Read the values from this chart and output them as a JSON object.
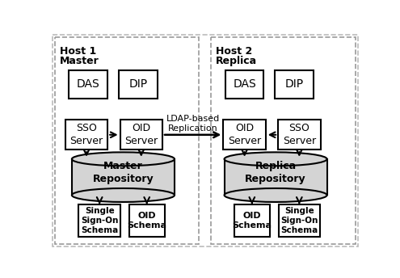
{
  "bg_color": "#ffffff",
  "box_fill": "#ffffff",
  "box_edge": "#000000",
  "cylinder_fill": "#d4d4d4",
  "cylinder_edge": "#000000",
  "arrow_color": "#000000",
  "text_color": "#000000",
  "host1_label": "Host 1",
  "host1_sublabel": "Master",
  "host2_label": "Host 2",
  "host2_sublabel": "Replica",
  "replication_label": "LDAP-based\nReplication",
  "left_schema1": "Single\nSign-On\nSchema",
  "left_schema2": "OID\nSchema",
  "right_schema1": "OID\nSchema",
  "right_schema2": "Single\nSign-On\nSchema",
  "left_cyl_label": "Master\nRepository",
  "right_cyl_label": "Replica\nRepository"
}
